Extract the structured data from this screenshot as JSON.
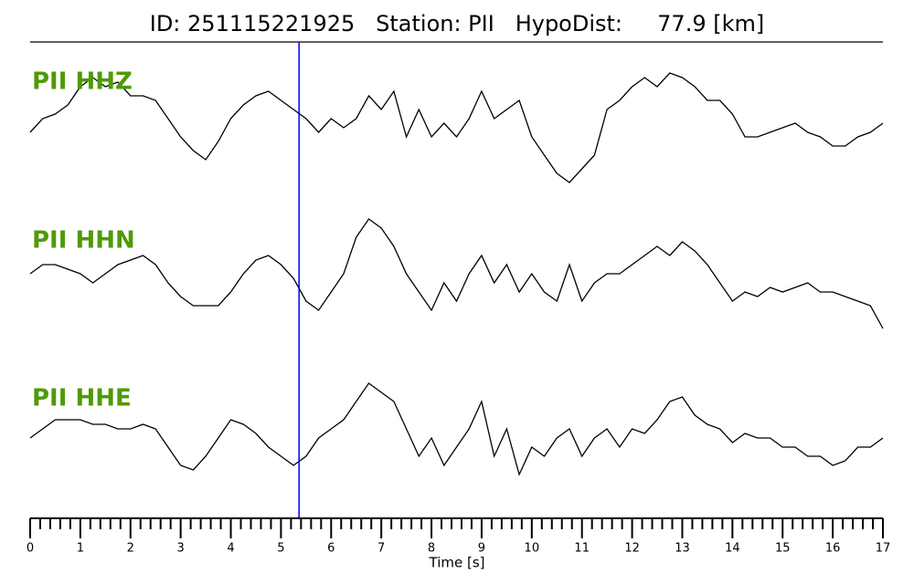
{
  "chart_data": {
    "type": "line",
    "title": "ID: 251115221925   Station: PII   HypoDist:     77.9 [km]",
    "xlabel": "Time [s]",
    "x": [
      0,
      0.25,
      0.5,
      0.75,
      1,
      1.25,
      1.5,
      1.75,
      2,
      2.25,
      2.5,
      2.75,
      3,
      3.25,
      3.5,
      3.75,
      4,
      4.25,
      4.5,
      4.75,
      5,
      5.25,
      5.5,
      5.75,
      6,
      6.25,
      6.5,
      6.75,
      7,
      7.25,
      7.5,
      7.75,
      8,
      8.25,
      8.5,
      8.75,
      9,
      9.25,
      9.5,
      9.75,
      10,
      10.25,
      10.5,
      10.75,
      11,
      11.25,
      11.5,
      11.75,
      12,
      12.25,
      12.5,
      12.75,
      13,
      13.25,
      13.5,
      13.75,
      14,
      14.25,
      14.5,
      14.75,
      15,
      15.25,
      15.5,
      15.75,
      16,
      16.25,
      16.5,
      16.75,
      17
    ],
    "series": [
      {
        "name": "PII HHZ",
        "color": "#000000",
        "label_color": "#4f9a06",
        "values": [
          -5,
          10,
          15,
          25,
          45,
          55,
          45,
          50,
          35,
          35,
          30,
          10,
          -10,
          -25,
          -35,
          -15,
          10,
          25,
          35,
          40,
          30,
          20,
          10,
          -5,
          10,
          0,
          10,
          35,
          20,
          40,
          -10,
          20,
          -10,
          5,
          -10,
          10,
          40,
          10,
          20,
          30,
          -10,
          -30,
          -50,
          -60,
          -45,
          -30,
          20,
          30,
          45,
          55,
          45,
          60,
          55,
          45,
          30,
          30,
          15,
          -10,
          -10,
          -5,
          0,
          5,
          -5,
          -10,
          -20,
          -20,
          -10,
          -5,
          5
        ]
      },
      {
        "name": "PII HHN",
        "color": "#000000",
        "label_color": "#4f9a06",
        "values": [
          -5,
          5,
          5,
          0,
          -5,
          -15,
          -5,
          5,
          10,
          15,
          5,
          -15,
          -30,
          -40,
          -40,
          -40,
          -25,
          -5,
          10,
          15,
          5,
          -10,
          -35,
          -45,
          -25,
          -5,
          35,
          55,
          45,
          25,
          -5,
          -25,
          -45,
          -15,
          -35,
          -5,
          15,
          -15,
          5,
          -25,
          -5,
          -25,
          -35,
          5,
          -35,
          -15,
          -5,
          -5,
          5,
          15,
          25,
          15,
          30,
          20,
          5,
          -15,
          -35,
          -25,
          -30,
          -20,
          -25,
          -20,
          -15,
          -25,
          -25,
          -30,
          -35,
          -40,
          -65
        ]
      },
      {
        "name": "PII HHE",
        "color": "#000000",
        "label_color": "#4f9a06",
        "values": [
          -10,
          0,
          10,
          10,
          10,
          5,
          5,
          0,
          0,
          5,
          0,
          -20,
          -40,
          -45,
          -30,
          -10,
          10,
          5,
          -5,
          -20,
          -30,
          -40,
          -30,
          -10,
          0,
          10,
          30,
          50,
          40,
          30,
          0,
          -30,
          -10,
          -40,
          -20,
          0,
          30,
          -30,
          0,
          -50,
          -20,
          -30,
          -10,
          0,
          -30,
          -10,
          0,
          -20,
          0,
          -5,
          10,
          30,
          35,
          15,
          5,
          0,
          -15,
          -5,
          -10,
          -10,
          -20,
          -20,
          -30,
          -30,
          -40,
          -35,
          -20,
          -20,
          -10
        ]
      }
    ],
    "ylim": [
      -80,
      80
    ],
    "xlim": [
      0,
      17
    ],
    "xticks": [
      0,
      1,
      2,
      3,
      4,
      5,
      6,
      7,
      8,
      9,
      10,
      11,
      12,
      13,
      14,
      15,
      16,
      17
    ],
    "xminorticks": [
      0.2,
      0.4,
      0.6,
      0.8,
      1.2,
      1.4,
      1.6,
      1.8,
      2.2,
      2.4,
      2.6,
      2.8,
      3.2,
      3.4,
      3.6,
      3.8,
      4.2,
      4.4,
      4.6,
      4.8,
      5.2,
      5.4,
      5.6,
      5.8,
      6.2,
      6.4,
      6.6,
      6.8,
      7.2,
      7.4,
      7.6,
      7.8,
      8.2,
      8.4,
      8.6,
      8.8,
      9.2,
      9.4,
      9.6,
      9.8,
      10.2,
      10.4,
      10.6,
      10.8,
      11.2,
      11.4,
      11.6,
      11.8,
      12.2,
      12.4,
      12.6,
      12.8,
      13.2,
      13.4,
      13.6,
      13.8,
      14.2,
      14.4,
      14.6,
      14.8,
      15.2,
      15.4,
      15.6,
      15.8,
      16.2,
      16.4,
      16.6,
      16.8
    ],
    "pick": 5.36,
    "pick_color": "#0000ff"
  }
}
